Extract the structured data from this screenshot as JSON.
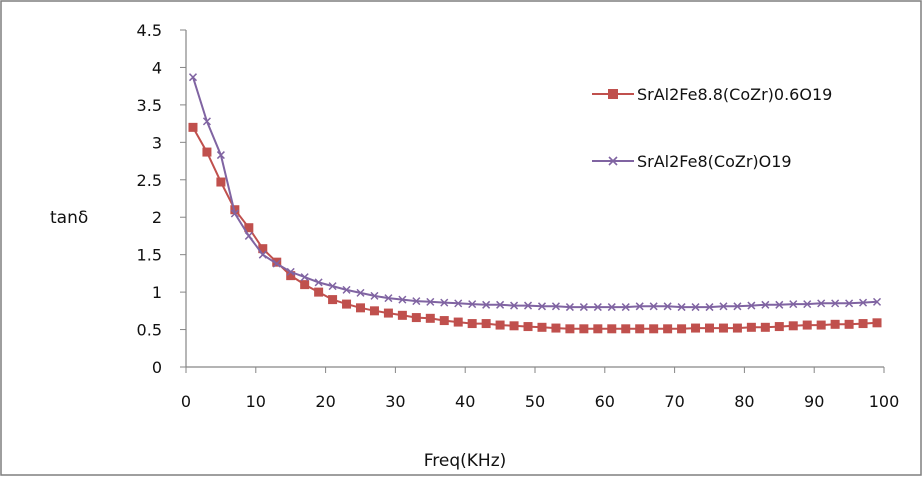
{
  "colors": {
    "series1": "#c0504d",
    "series2": "#8064a2",
    "axis": "#868686",
    "frame": "#7f7f7f"
  },
  "chart_data": {
    "type": "line",
    "title": "",
    "xlabel": "Freq(KHz)",
    "ylabel": "tanδ",
    "xlim": [
      0,
      100
    ],
    "ylim": [
      0,
      4.5
    ],
    "x_ticks": [
      "0",
      "10",
      "20",
      "30",
      "40",
      "50",
      "60",
      "70",
      "80",
      "90",
      "100"
    ],
    "y_ticks": [
      "0",
      "0.5",
      "1",
      "1.5",
      "2",
      "2.5",
      "3",
      "3.5",
      "4",
      "4.5"
    ],
    "grid": false,
    "legend_position": "right",
    "x": [
      1,
      3,
      5,
      7,
      9,
      11,
      13,
      15,
      17,
      19,
      21,
      23,
      25,
      27,
      29,
      31,
      33,
      35,
      37,
      39,
      41,
      43,
      45,
      47,
      49,
      51,
      53,
      55,
      57,
      59,
      61,
      63,
      65,
      67,
      69,
      71,
      73,
      75,
      77,
      79,
      81,
      83,
      85,
      87,
      89,
      91,
      93,
      95,
      97,
      99
    ],
    "series": [
      {
        "name": "SrAl2Fe8.8(CoZr)0.6O19",
        "marker": "square",
        "color": "#c0504d",
        "values": [
          3.2,
          2.87,
          2.47,
          2.1,
          1.86,
          1.58,
          1.4,
          1.22,
          1.1,
          1.0,
          0.9,
          0.84,
          0.79,
          0.75,
          0.72,
          0.69,
          0.66,
          0.65,
          0.62,
          0.6,
          0.58,
          0.58,
          0.56,
          0.55,
          0.54,
          0.53,
          0.52,
          0.51,
          0.51,
          0.51,
          0.51,
          0.51,
          0.51,
          0.51,
          0.51,
          0.51,
          0.52,
          0.52,
          0.52,
          0.52,
          0.53,
          0.53,
          0.54,
          0.55,
          0.56,
          0.56,
          0.57,
          0.57,
          0.58,
          0.59
        ]
      },
      {
        "name": "SrAl2Fe8(CoZr)O19",
        "marker": "x",
        "color": "#8064a2",
        "values": [
          3.87,
          3.28,
          2.83,
          2.05,
          1.75,
          1.5,
          1.38,
          1.27,
          1.2,
          1.13,
          1.08,
          1.03,
          0.99,
          0.95,
          0.92,
          0.9,
          0.88,
          0.87,
          0.86,
          0.85,
          0.84,
          0.83,
          0.83,
          0.82,
          0.82,
          0.81,
          0.81,
          0.8,
          0.8,
          0.8,
          0.8,
          0.8,
          0.81,
          0.81,
          0.81,
          0.8,
          0.8,
          0.8,
          0.81,
          0.81,
          0.82,
          0.83,
          0.83,
          0.84,
          0.84,
          0.85,
          0.85,
          0.85,
          0.86,
          0.87
        ]
      }
    ]
  }
}
